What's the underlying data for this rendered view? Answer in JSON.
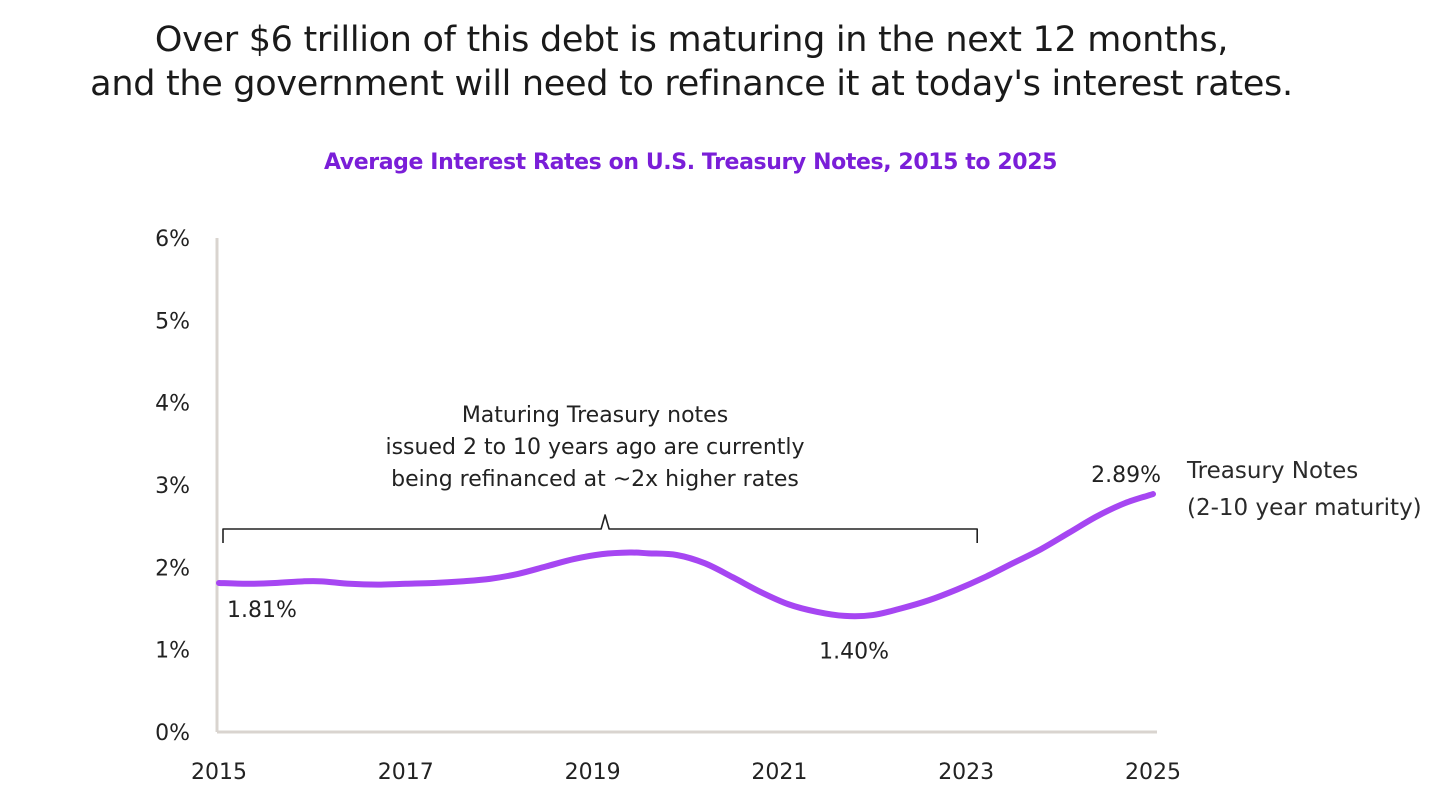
{
  "headline": {
    "line1": "Over $6 trillion of this debt is maturing in the next 12 months,",
    "line2": "and the government will need to refinance it at today's interest rates."
  },
  "chart_data": {
    "type": "line",
    "title": "Average Interest Rates on U.S. Treasury Notes, 2015 to 2025",
    "xlabel": "",
    "ylabel": "",
    "xlim": [
      2015,
      2025
    ],
    "ylim": [
      0,
      6
    ],
    "x_ticks": [
      "2015",
      "2017",
      "2019",
      "2021",
      "2023",
      "2025"
    ],
    "y_ticks": [
      "0%",
      "1%",
      "2%",
      "3%",
      "4%",
      "5%",
      "6%"
    ],
    "grid": false,
    "series": [
      {
        "name": "Treasury Notes (2-10 year maturity)",
        "color": "#a646f2",
        "x": [
          2015.0,
          2015.3,
          2015.6,
          2015.9,
          2016.1,
          2016.4,
          2016.7,
          2017.0,
          2017.3,
          2017.6,
          2017.9,
          2018.2,
          2018.5,
          2018.8,
          2019.1,
          2019.4,
          2019.6,
          2019.9,
          2020.2,
          2020.5,
          2020.8,
          2021.1,
          2021.4,
          2021.7,
          2022.0,
          2022.3,
          2022.6,
          2022.9,
          2023.2,
          2023.5,
          2023.8,
          2024.1,
          2024.4,
          2024.7,
          2025.0
        ],
        "values": [
          1.81,
          1.8,
          1.81,
          1.83,
          1.83,
          1.8,
          1.79,
          1.8,
          1.81,
          1.83,
          1.86,
          1.92,
          2.01,
          2.1,
          2.16,
          2.18,
          2.17,
          2.15,
          2.05,
          1.88,
          1.7,
          1.55,
          1.46,
          1.41,
          1.42,
          1.5,
          1.6,
          1.73,
          1.88,
          2.05,
          2.22,
          2.42,
          2.62,
          2.78,
          2.89
        ]
      }
    ],
    "data_labels": [
      {
        "text": "1.81%",
        "x": 2015.0,
        "y": 1.81
      },
      {
        "text": "1.40%",
        "x": 2021.8,
        "y": 1.4
      },
      {
        "text": "2.89%",
        "x": 2025.0,
        "y": 2.89
      }
    ],
    "series_label": {
      "line1": "Treasury Notes",
      "line2": "(2-10 year maturity)"
    },
    "annotation": {
      "line1": "Maturing Treasury notes",
      "line2": "issued 2 to 10 years ago are currently",
      "line3": "being refinanced at ~2x higher rates",
      "bracket_from": 2015.0,
      "bracket_to": 2023.0
    }
  }
}
